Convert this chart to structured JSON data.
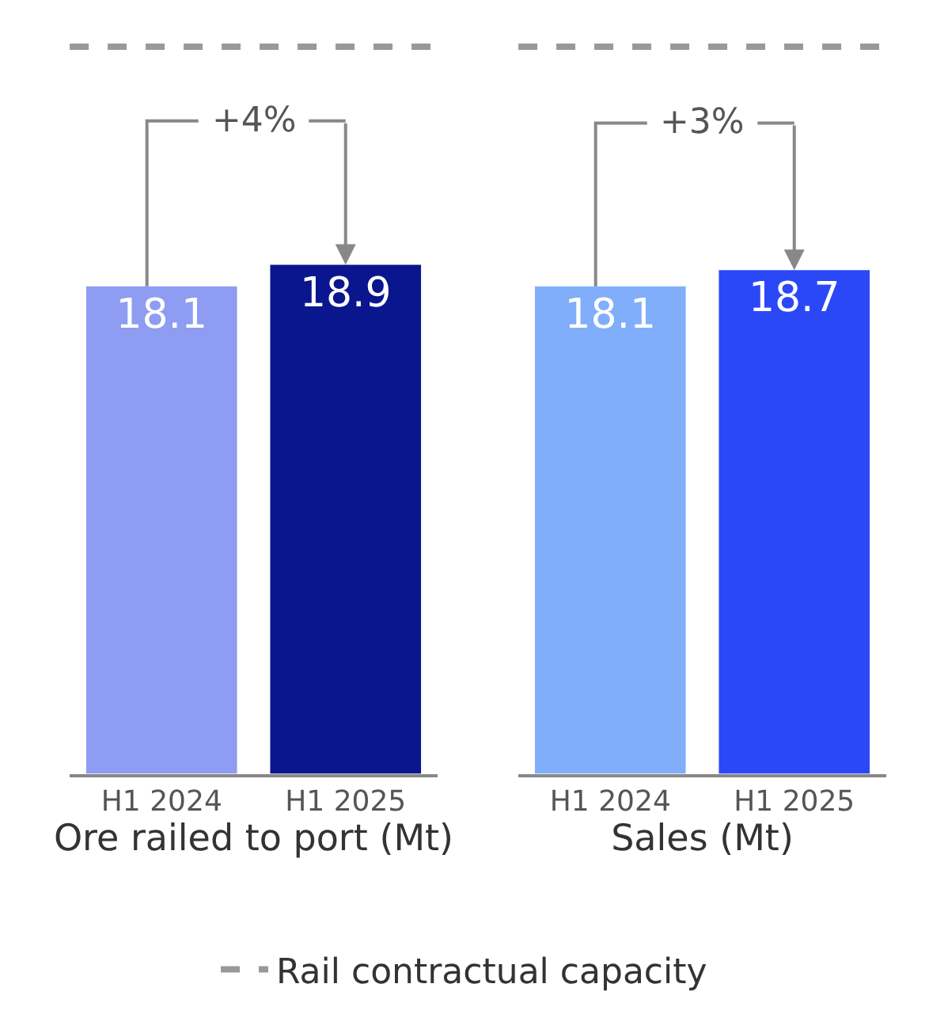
{
  "chart_data": [
    {
      "type": "bar",
      "xlabel": "Ore railed to port (Mt)",
      "categories": [
        "H1 2024",
        "H1 2025"
      ],
      "values": [
        18.1,
        18.9
      ],
      "colors": [
        "#8e9cf2",
        "#0a168e"
      ],
      "data_labels": true,
      "tick_labels": "x",
      "annotations": [
        "+4%"
      ],
      "ref_lines": [
        {
          "axis": "y",
          "value": 27,
          "label": "Rail contractual capacity",
          "color": "#999999",
          "line_style": "dashed"
        }
      ],
      "legend": "bottom"
    },
    {
      "type": "bar",
      "xlabel": "Sales (Mt)",
      "categories": [
        "H1 2024",
        "H1 2025"
      ],
      "values": [
        18.1,
        18.7
      ],
      "colors": [
        "#80aefa",
        "#2b48f7"
      ],
      "data_labels": true,
      "tick_labels": "x",
      "annotations": [
        "+3%"
      ],
      "ref_lines": [
        {
          "axis": "y",
          "value": 27,
          "color": "#999999",
          "line_style": "dashed"
        }
      ]
    }
  ]
}
